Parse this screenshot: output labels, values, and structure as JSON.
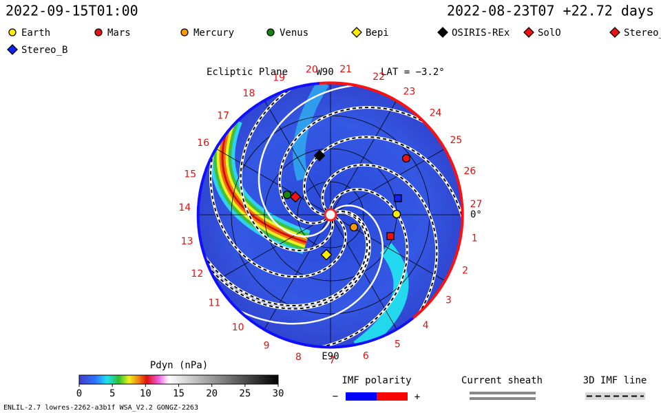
{
  "header": {
    "run_time": "2022-09-15T01:00",
    "sim_time": "2022-08-23T07 +22.72 days"
  },
  "legend": [
    "Earth",
    "Mars",
    "Mercury",
    "Venus",
    "Bepi",
    "OSIRIS-REx",
    "SolO",
    "Stereo_",
    "Stereo_B"
  ],
  "plot": {
    "title": "Ecliptic Plane",
    "top_label": "W90",
    "bottom_label": "E90",
    "latitude": "LAT = −3.2°",
    "zero_label": "0°",
    "carrington_longitudes": [
      "1",
      "2",
      "3",
      "4",
      "5",
      "6",
      "7",
      "8",
      "9",
      "10",
      "11",
      "12",
      "13",
      "14",
      "15",
      "16",
      "17",
      "18",
      "19",
      "20",
      "21",
      "22",
      "23",
      "24",
      "25",
      "26",
      "27"
    ]
  },
  "colorbar": {
    "title": "Pdyn (nPa)",
    "ticks": [
      "0",
      "5",
      "10",
      "15",
      "20",
      "25",
      "30"
    ]
  },
  "imf": {
    "title": "IMF polarity",
    "minus": "−",
    "plus": "+"
  },
  "current_sheath": "Current sheath",
  "imf_line": "3D IMF line",
  "footer": "ENLIL-2.7 lowres-2262-a3b1f WSA_V2.2 GONGZ-2263"
}
